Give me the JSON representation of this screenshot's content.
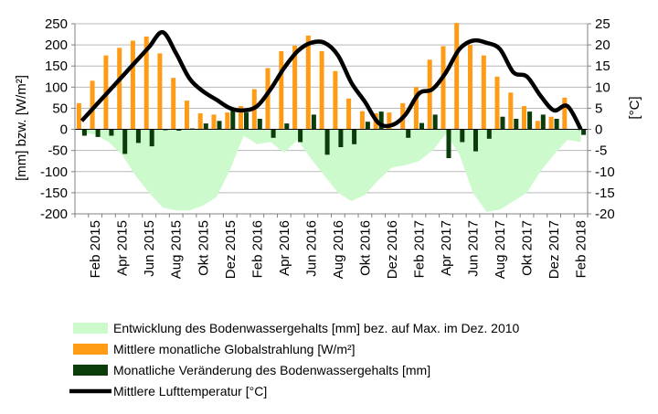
{
  "chart_data": {
    "type": "bar",
    "categories": [
      "Jan 2015",
      "Feb 2015",
      "Mar 2015",
      "Apr 2015",
      "Mai 2015",
      "Jun 2015",
      "Jul 2015",
      "Aug 2015",
      "Sep 2015",
      "Okt 2015",
      "Nov 2015",
      "Dez 2015",
      "Jan 2016",
      "Feb 2016",
      "Mar 2016",
      "Apr 2016",
      "Mai 2016",
      "Jun 2016",
      "Jul 2016",
      "Aug 2016",
      "Sep 2016",
      "Okt 2016",
      "Nov 2016",
      "Dez 2016",
      "Jan 2017",
      "Feb 2017",
      "Mar 2017",
      "Apr 2017",
      "Mai 2017",
      "Jun 2017",
      "Jul 2017",
      "Aug 2017",
      "Sep 2017",
      "Okt 2017",
      "Nov 2017",
      "Dez 2017",
      "Jan 2018",
      "Feb 2018"
    ],
    "x_tick_labels": [
      "Feb 2015",
      "Apr 2015",
      "Jun 2015",
      "Aug 2015",
      "Okt 2015",
      "Dez 2015",
      "Feb 2016",
      "Apr 2016",
      "Jun 2016",
      "Aug 2016",
      "Okt 2016",
      "Dez 2016",
      "Feb 2017",
      "Apr 2017",
      "Jun 2017",
      "Aug 2017",
      "Okt 2017",
      "Dez 2017",
      "Feb 2018"
    ],
    "ylabel": "[mm] bzw. [W/m²]",
    "y2label": "[°C]",
    "ylim": [
      -200,
      250
    ],
    "y2lim": [
      -20,
      25
    ],
    "y_ticks": [
      250,
      200,
      150,
      100,
      50,
      0,
      -50,
      -100,
      -150,
      -200
    ],
    "y2_ticks": [
      25,
      20,
      15,
      10,
      5,
      0,
      -5,
      -10,
      -15,
      -20
    ],
    "grid": true,
    "legend_position": "bottom",
    "series": [
      {
        "name": "Entwicklung des Bodenwassergehalts [mm] bez. auf Max. im Dez. 2010",
        "kind": "area",
        "color": "#ccfacc",
        "values": [
          -8,
          -12,
          -30,
          -60,
          -110,
          -150,
          -185,
          -192,
          -192,
          -180,
          -160,
          -95,
          -15,
          -35,
          -30,
          -55,
          -25,
          -70,
          -110,
          -150,
          -170,
          -155,
          -120,
          -90,
          -85,
          -75,
          -50,
          -10,
          -60,
          -150,
          -195,
          -190,
          -170,
          -150,
          -100,
          -60,
          -25,
          -30
        ]
      },
      {
        "name": "Mittlere monatliche Globalstrahlung [W/m²]",
        "kind": "bar",
        "color": "#ff9b14",
        "values": [
          62,
          115,
          175,
          193,
          210,
          220,
          180,
          122,
          68,
          38,
          35,
          40,
          55,
          95,
          145,
          185,
          198,
          222,
          185,
          138,
          73,
          43,
          38,
          40,
          62,
          100,
          165,
          197,
          252,
          200,
          175,
          125,
          87,
          55,
          20,
          30,
          75,
          0
        ]
      },
      {
        "name": "Monatliche Veränderung des Bodenwassergehalts [mm]",
        "kind": "bar",
        "color": "#0b3d0b",
        "values": [
          -15,
          -18,
          -15,
          -58,
          -32,
          -40,
          -2,
          -3,
          2,
          14,
          20,
          50,
          40,
          25,
          -20,
          14,
          -30,
          35,
          -60,
          -42,
          -35,
          18,
          42,
          0,
          -20,
          15,
          35,
          -68,
          -30,
          -52,
          -22,
          30,
          25,
          42,
          35,
          25,
          0,
          -13
        ]
      },
      {
        "name": "Mittlere Lufttemperatur [°C]",
        "kind": "line",
        "axis": "right",
        "color": "#000000",
        "values": [
          2.0,
          5.5,
          9.0,
          12.5,
          16.0,
          19.5,
          23.0,
          18.0,
          12.0,
          9.0,
          7.0,
          5.0,
          4.5,
          5.5,
          9.5,
          14.5,
          18.5,
          20.5,
          20.5,
          17.5,
          11.0,
          6.5,
          1.5,
          1.0,
          3.5,
          8.5,
          9.5,
          13.5,
          19.0,
          21.0,
          20.5,
          19.0,
          13.5,
          12.5,
          8.0,
          4.5,
          5.5,
          0.0
        ]
      }
    ]
  }
}
